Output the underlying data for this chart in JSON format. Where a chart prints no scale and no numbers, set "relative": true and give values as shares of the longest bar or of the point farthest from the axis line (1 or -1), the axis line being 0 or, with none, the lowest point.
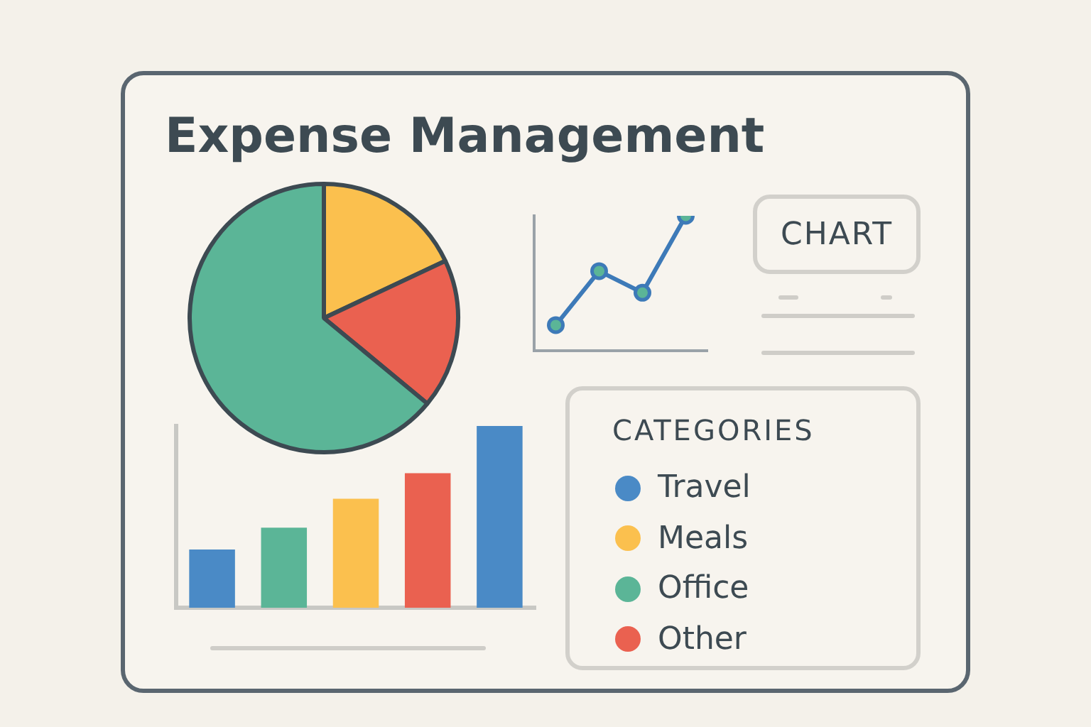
{
  "chart_data": [
    {
      "type": "pie",
      "title": "Expense Management",
      "categories": [
        null,
        null,
        null
      ],
      "values": [
        18,
        18,
        64
      ],
      "colors": [
        "#fbc04e",
        "#ea6150",
        "#5bb597"
      ]
    },
    {
      "type": "line",
      "relative": true,
      "categories": [
        null,
        null,
        null,
        null
      ],
      "annotations": [
        "CHART"
      ],
      "marker": "circle",
      "series": [
        {
          "color": "#3d7ab8",
          "values": [
            0.19,
            0.59,
            0.43,
            1
          ]
        }
      ]
    },
    {
      "type": "bar",
      "relative": true,
      "categories": [
        null,
        null,
        null,
        null,
        null
      ],
      "values": [
        0.32,
        0.44,
        0.6,
        0.74,
        1
      ],
      "colors": [
        "#4a8ac6",
        "#5bb597",
        "#fbc04e",
        "#ea6150",
        "#4a8ac6"
      ]
    },
    {
      "type": "other",
      "legend_title": "CATEGORIES",
      "categories": [
        "Travel",
        "Meals",
        "Office",
        "Other"
      ],
      "colors": [
        "#4a8ac6",
        "#fbc04e",
        "#5bb597",
        "#ea6150"
      ]
    }
  ]
}
